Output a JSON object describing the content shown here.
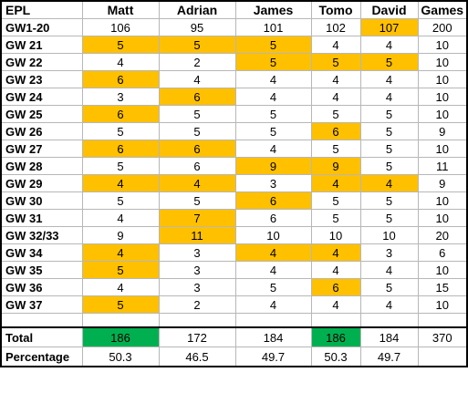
{
  "table": {
    "corner": "EPL",
    "columns": [
      "Matt",
      "Adrian",
      "James",
      "Tomo",
      "David",
      "Games"
    ],
    "rows": [
      {
        "label": "GW1-20",
        "cells": [
          "106",
          "95",
          "101",
          "102",
          "107",
          "200"
        ],
        "highlight": [
          0,
          0,
          0,
          0,
          1,
          0
        ]
      },
      {
        "label": "GW 21",
        "cells": [
          "5",
          "5",
          "5",
          "4",
          "4",
          "10"
        ],
        "highlight": [
          1,
          1,
          1,
          0,
          0,
          0
        ]
      },
      {
        "label": "GW 22",
        "cells": [
          "4",
          "2",
          "5",
          "5",
          "5",
          "10"
        ],
        "highlight": [
          0,
          0,
          1,
          1,
          1,
          0
        ]
      },
      {
        "label": "GW 23",
        "cells": [
          "6",
          "4",
          "4",
          "4",
          "4",
          "10"
        ],
        "highlight": [
          1,
          0,
          0,
          0,
          0,
          0
        ]
      },
      {
        "label": "GW 24",
        "cells": [
          "3",
          "6",
          "4",
          "4",
          "4",
          "10"
        ],
        "highlight": [
          0,
          1,
          0,
          0,
          0,
          0
        ]
      },
      {
        "label": "GW 25",
        "cells": [
          "6",
          "5",
          "5",
          "5",
          "5",
          "10"
        ],
        "highlight": [
          1,
          0,
          0,
          0,
          0,
          0
        ]
      },
      {
        "label": "GW 26",
        "cells": [
          "5",
          "5",
          "5",
          "6",
          "5",
          "9"
        ],
        "highlight": [
          0,
          0,
          0,
          1,
          0,
          0
        ]
      },
      {
        "label": "GW 27",
        "cells": [
          "6",
          "6",
          "4",
          "5",
          "5",
          "10"
        ],
        "highlight": [
          1,
          1,
          0,
          0,
          0,
          0
        ]
      },
      {
        "label": "GW 28",
        "cells": [
          "5",
          "6",
          "9",
          "9",
          "5",
          "11"
        ],
        "highlight": [
          0,
          0,
          1,
          1,
          0,
          0
        ]
      },
      {
        "label": "GW 29",
        "cells": [
          "4",
          "4",
          "3",
          "4",
          "4",
          "9"
        ],
        "highlight": [
          1,
          1,
          0,
          1,
          1,
          0
        ]
      },
      {
        "label": "GW 30",
        "cells": [
          "5",
          "5",
          "6",
          "5",
          "5",
          "10"
        ],
        "highlight": [
          0,
          0,
          1,
          0,
          0,
          0
        ]
      },
      {
        "label": "GW 31",
        "cells": [
          "4",
          "7",
          "6",
          "5",
          "5",
          "10"
        ],
        "highlight": [
          0,
          1,
          0,
          0,
          0,
          0
        ]
      },
      {
        "label": "GW 32/33",
        "cells": [
          "9",
          "11",
          "10",
          "10",
          "10",
          "20"
        ],
        "highlight": [
          0,
          1,
          0,
          0,
          0,
          0
        ]
      },
      {
        "label": "GW 34",
        "cells": [
          "4",
          "3",
          "4",
          "4",
          "3",
          "6"
        ],
        "highlight": [
          1,
          0,
          1,
          1,
          0,
          0
        ]
      },
      {
        "label": "GW 35",
        "cells": [
          "5",
          "3",
          "4",
          "4",
          "4",
          "10"
        ],
        "highlight": [
          1,
          0,
          0,
          0,
          0,
          0
        ]
      },
      {
        "label": "GW 36",
        "cells": [
          "4",
          "3",
          "5",
          "6",
          "5",
          "15"
        ],
        "highlight": [
          0,
          0,
          0,
          1,
          0,
          0
        ]
      },
      {
        "label": "GW 37",
        "cells": [
          "5",
          "2",
          "4",
          "4",
          "4",
          "10"
        ],
        "highlight": [
          1,
          0,
          0,
          0,
          0,
          0
        ]
      }
    ],
    "total": {
      "label": "Total",
      "cells": [
        "186",
        "172",
        "184",
        "186",
        "184",
        "370"
      ],
      "winner": [
        1,
        0,
        0,
        1,
        0,
        0
      ]
    },
    "percentage": {
      "label": "Percentage",
      "cells": [
        "50.3",
        "46.5",
        "49.7",
        "50.3",
        "49.7",
        ""
      ]
    }
  },
  "colors": {
    "highlight": "#ffc000",
    "winner": "#00b050"
  }
}
